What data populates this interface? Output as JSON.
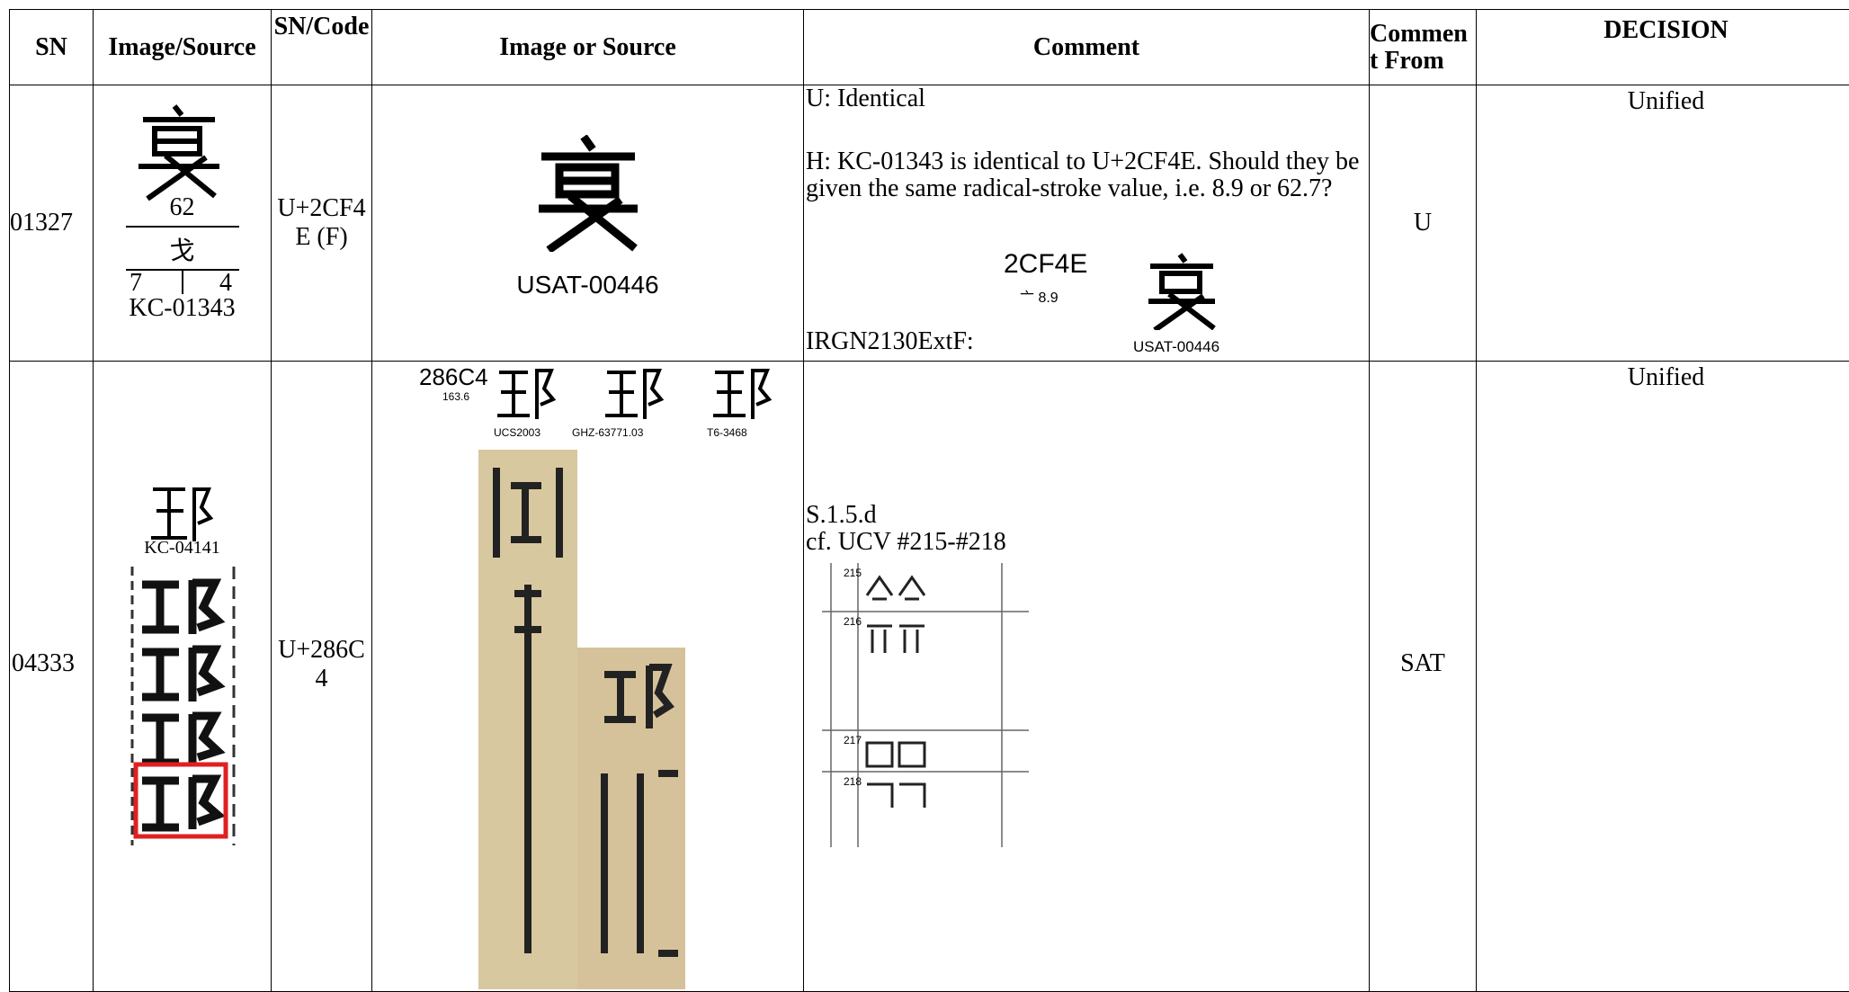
{
  "header": {
    "sn": "SN",
    "image_source": "Image/Source",
    "sn_code": "SN/Code",
    "image_or_source": "Image or Source",
    "comment": "Comment",
    "comment_from": "Comment From",
    "decision": "DECISION"
  },
  "rows": [
    {
      "sn": "01327",
      "image_source": {
        "radical": "62",
        "component": "戈",
        "strokes_left": "7",
        "strokes_right": "4",
        "source": "KC-01343"
      },
      "code": "U+2CF4E (F)",
      "image_or_source": {
        "source": "USAT-00446"
      },
      "comment": {
        "lines": [
          "U: Identical",
          "H: KC-01343 is identical to U+2CF4E.  Should they be given the same radical-stroke value, i.e. 8.9 or 62.7?",
          "IRGN2130ExtF:"
        ],
        "figure": {
          "code": "2CF4E",
          "radical_stroke": "亠 8.9",
          "source": "USAT-00446"
        }
      },
      "comment_from": "U",
      "decision": "Unified"
    },
    {
      "sn": "04333",
      "image_source": {
        "source": "KC-04141"
      },
      "code": "U+286C4",
      "image_or_source": {
        "code": "286C4",
        "radical_stroke": "163.6",
        "sources": [
          "UCS2003",
          "GHZ-63771.03",
          "T6-3468"
        ]
      },
      "comment": {
        "lines": [
          "S.1.5.d",
          "cf. UCV #215-#218"
        ],
        "ucv": [
          "215",
          "216",
          "217",
          "218"
        ]
      },
      "comment_from": "SAT",
      "decision": "Unified"
    }
  ]
}
